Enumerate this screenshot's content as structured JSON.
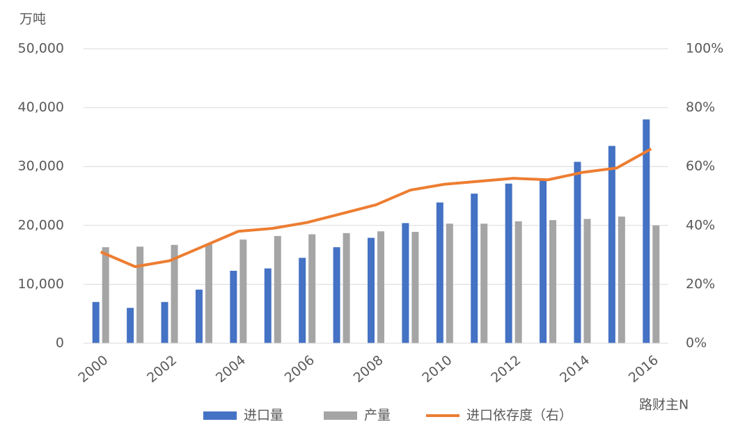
{
  "chart_data": {
    "type": "bar_line",
    "y_label": "万吨",
    "categories": [
      "2000",
      null,
      "2002",
      null,
      "2004",
      null,
      "2006",
      null,
      "2008",
      null,
      "2010",
      null,
      "2012",
      null,
      "2014",
      null,
      "2016"
    ],
    "series": [
      {
        "name": "进口量",
        "color": "#4472c4",
        "type": "bar",
        "values": [
          7000,
          6000,
          7000,
          9100,
          12300,
          12700,
          14500,
          16300,
          17900,
          20400,
          23900,
          25400,
          27100,
          27900,
          30800,
          33500,
          38000
        ]
      },
      {
        "name": "产量",
        "color": "#a5a5a5",
        "type": "bar",
        "values": [
          16300,
          16400,
          16700,
          16900,
          17600,
          18200,
          18500,
          18700,
          19000,
          18900,
          20300,
          20300,
          20700,
          20900,
          21100,
          21500,
          20000
        ]
      },
      {
        "name": "进口依存度（右）",
        "color": "#ed7d31",
        "type": "line",
        "axis": "y2",
        "values": [
          31,
          26,
          28,
          33,
          38,
          39,
          41,
          44,
          47,
          52,
          54,
          55,
          56,
          55.5,
          58,
          59.5,
          66
        ]
      }
    ],
    "ylim": [
      0,
      50000
    ],
    "yticks": [
      0,
      {
        "value": 10000,
        "label": "10,000"
      },
      {
        "value": 20000,
        "label": "20,000"
      },
      {
        "value": 30000,
        "label": "30,000"
      },
      {
        "value": 40000,
        "label": "40,000"
      },
      {
        "value": 50000,
        "label": "50,000"
      }
    ],
    "y2lim": [
      0,
      100
    ],
    "y2ticks": [
      {
        "value": 0,
        "label": "0%"
      },
      {
        "value": 20,
        "label": "20%"
      },
      {
        "value": 40,
        "label": "40%"
      },
      {
        "value": 60,
        "label": "60%"
      },
      {
        "value": 80,
        "label": "80%"
      },
      {
        "value": 100,
        "label": "100%"
      }
    ],
    "grid": true,
    "legend": "bottom",
    "watermark": "路财主N"
  }
}
